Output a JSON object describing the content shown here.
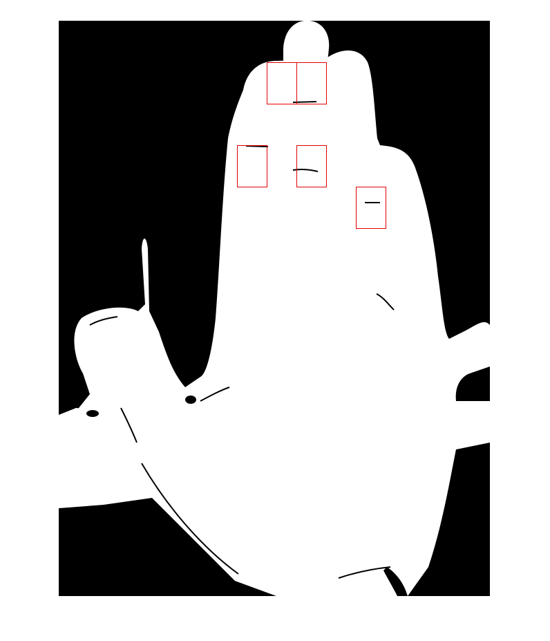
{
  "image": {
    "kind": "binary segmentation mask of a hand (palm view) with detected regions",
    "background_color": "#000000",
    "foreground_color": "#ffffff",
    "page_background": "#ffffff"
  },
  "detections": {
    "box_color": "#e00000",
    "count": 5
  }
}
